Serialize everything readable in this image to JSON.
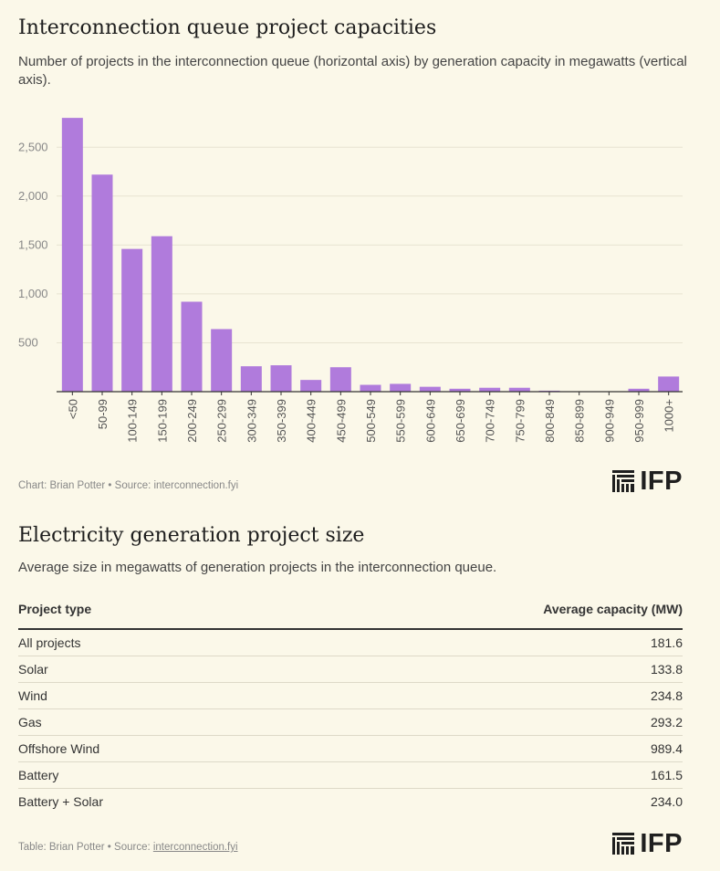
{
  "chart": {
    "title": "Interconnection queue project capacities",
    "subtitle": "Number of projects in the interconnection queue (horizontal axis) by generation capacity in megawatts (vertical axis).",
    "credit": "Chart: Brian Potter • Source: interconnection.fyi"
  },
  "chart_data": {
    "type": "bar",
    "categories": [
      "<50",
      "50-99",
      "100-149",
      "150-199",
      "200-249",
      "250-299",
      "300-349",
      "350-399",
      "400-449",
      "450-499",
      "500-549",
      "550-599",
      "600-649",
      "650-699",
      "700-749",
      "750-799",
      "800-849",
      "850-899",
      "900-949",
      "950-999",
      "1000+"
    ],
    "values": [
      2800,
      2220,
      1460,
      1590,
      920,
      640,
      260,
      270,
      120,
      250,
      70,
      80,
      50,
      30,
      40,
      40,
      10,
      0,
      0,
      30,
      155
    ],
    "ylim": [
      0,
      2800
    ],
    "yticks": [
      500,
      1000,
      1500,
      2000,
      2500
    ],
    "ytick_labels": [
      "500",
      "1,000",
      "1,500",
      "2,000",
      "2,500"
    ],
    "grid": true,
    "bar_color": "#b07bdc"
  },
  "table": {
    "title": "Electricity generation project size",
    "subtitle": "Average size in megawatts of generation projects in the interconnection queue.",
    "columns": [
      "Project type",
      "Average capacity (MW)"
    ],
    "rows": [
      [
        "All projects",
        "181.6"
      ],
      [
        "Solar",
        "133.8"
      ],
      [
        "Wind",
        "234.8"
      ],
      [
        "Gas",
        "293.2"
      ],
      [
        "Offshore Wind",
        "989.4"
      ],
      [
        "Battery",
        "161.5"
      ],
      [
        "Battery + Solar",
        "234.0"
      ]
    ],
    "credit_prefix": "Table: Brian Potter • Source: ",
    "credit_link": "interconnection.fyi"
  },
  "logo": {
    "text": "IFP",
    "icon": "ifp-logo-icon"
  }
}
